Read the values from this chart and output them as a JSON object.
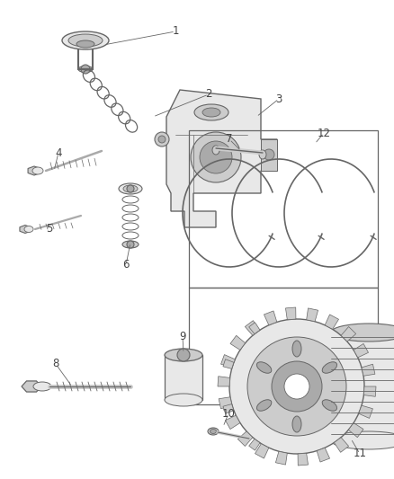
{
  "bg_color": "#ffffff",
  "line_color": "#666666",
  "fill_light": "#e8e8e8",
  "fill_mid": "#cccccc",
  "fill_dark": "#aaaaaa",
  "fig_width": 4.39,
  "fig_height": 5.33,
  "dpi": 100,
  "label_fontsize": 8.5,
  "label_color": "#444444"
}
